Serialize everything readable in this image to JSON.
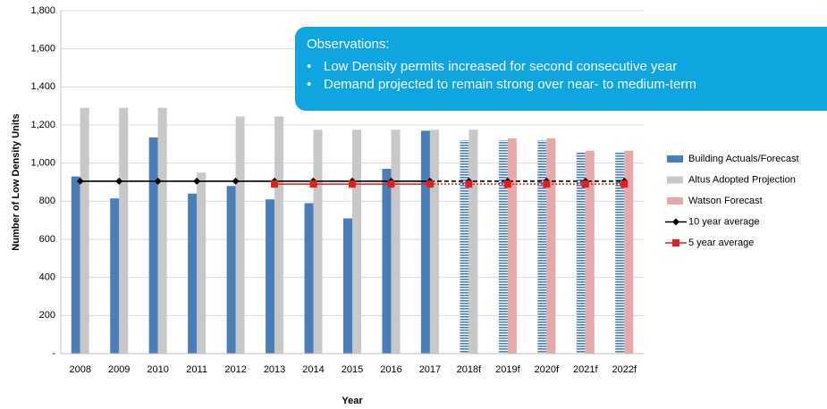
{
  "chart_data": {
    "type": "bar",
    "ylabel": "Number of Low Density Units",
    "xlabel": "Year",
    "categories": [
      "2008",
      "2009",
      "2010",
      "2011",
      "2012",
      "2013",
      "2014",
      "2015",
      "2016",
      "2017",
      "2018f",
      "2019f",
      "2020f",
      "2021f",
      "2022f"
    ],
    "series": [
      {
        "name": "Building Actuals/Forecast",
        "color": "#4a7ebb",
        "kind": "bar",
        "values": [
          930,
          815,
          1135,
          840,
          880,
          810,
          790,
          710,
          970,
          1170,
          1120,
          1120,
          1120,
          1060,
          1060
        ]
      },
      {
        "name": "Altus Adopted Projection",
        "color": "#c8c8c8",
        "kind": "bar",
        "values": [
          1290,
          1290,
          1290,
          950,
          1245,
          1245,
          1175,
          1175,
          1175,
          1175,
          1175,
          null,
          null,
          null,
          null
        ]
      },
      {
        "name": "Watson Forecast",
        "color": "#e6a9a9",
        "kind": "bar",
        "values": [
          null,
          null,
          null,
          null,
          null,
          null,
          null,
          null,
          null,
          null,
          null,
          1130,
          1130,
          1065,
          1065
        ]
      },
      {
        "name": "10 year average",
        "color": "#000000",
        "kind": "line",
        "marker": "diamond",
        "values": [
          905,
          905,
          905,
          905,
          905,
          905,
          905,
          905,
          905,
          905,
          905,
          905,
          905,
          905,
          905
        ]
      },
      {
        "name": "5 year average",
        "color": "#e0201b",
        "kind": "line",
        "marker": "square",
        "values": [
          null,
          null,
          null,
          null,
          null,
          890,
          890,
          890,
          890,
          890,
          890,
          890,
          890,
          890,
          890
        ]
      }
    ],
    "ylim": [
      0,
      1800
    ],
    "yticks": [
      {
        "value": 0,
        "label": "-"
      },
      200,
      400,
      600,
      800,
      {
        "value": 1000,
        "label": "1,000"
      },
      {
        "value": 1200,
        "label": "1,200"
      },
      {
        "value": 1400,
        "label": "1,400"
      },
      {
        "value": 1600,
        "label": "1,600"
      },
      {
        "value": 1800,
        "label": "1,800"
      }
    ],
    "grid": true,
    "legend": "right",
    "annotation": {
      "title": "Observations:",
      "bullets": [
        "Low Density permits increased for second consecutive year",
        "Demand projected to remain strong over near- to medium-term"
      ]
    }
  }
}
